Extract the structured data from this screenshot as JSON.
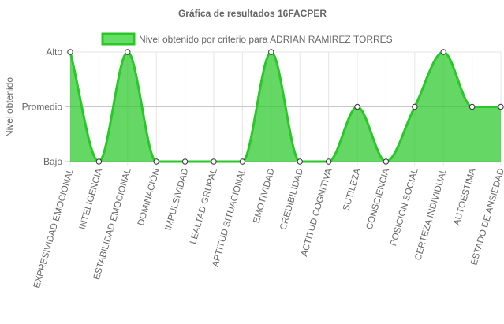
{
  "chart_data": {
    "type": "line",
    "title": "Gráfica de resultados 16FACPER",
    "ylabel": "Nivel obtenido",
    "xlabel": "",
    "y_categories": [
      "Bajo",
      "Promedio",
      "Alto"
    ],
    "ylim": [
      0,
      2
    ],
    "categories": [
      "EXPRESIVIDAD EMOCIONAL",
      "INTELIGENCIA",
      "ESTABILIDAD EMOCIONAL",
      "DOMINACIÓN",
      "IMPULSIVIDAD",
      "LEALTAD GRUPAL",
      "APTITUD SITUACIONAL",
      "EMOTIVIDAD",
      "CREDIBILIDAD",
      "ACTITUD COGNITIVA",
      "SUTILEZA",
      "CONSCIENCIA",
      "POSICIÓN SOCIAL",
      "CERTEZA INDIVIDUAL",
      "AUTOESTIMA",
      "ESTADO DE ANSIEDAD"
    ],
    "series": [
      {
        "name": "Nivel obtenido por criterio para ADRIAN RAMIREZ TORRES",
        "values": [
          2,
          0,
          2,
          0,
          0,
          0,
          0,
          2,
          0,
          0,
          1,
          0,
          1,
          2,
          1,
          1
        ],
        "color": "#28c828",
        "fill": "rgba(40,200,40,0.72)"
      }
    ],
    "legend_position": "top",
    "grid": true,
    "gridline_color": "#e6e6e6",
    "zero_line_color": "#bdbdbd"
  }
}
